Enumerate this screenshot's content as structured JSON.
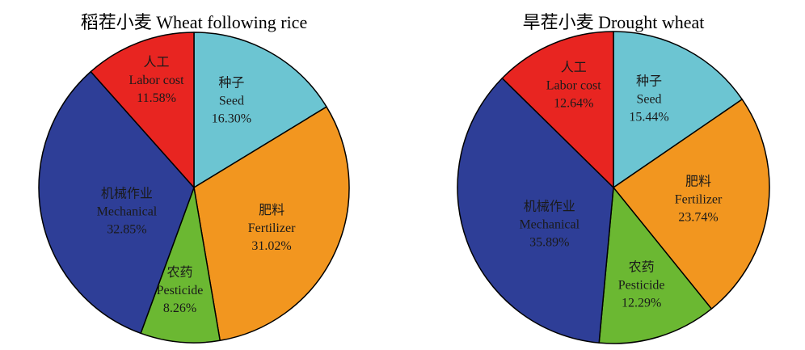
{
  "chart_data": [
    {
      "type": "pie",
      "title": "稻茬小麦 Wheat following rice",
      "slices": [
        {
          "label_cn": "种子",
          "label_en": "Seed",
          "value": 16.3,
          "percent_label": "16.30%",
          "color": "#6CC5D2"
        },
        {
          "label_cn": "肥料",
          "label_en": "Fertilizer",
          "value": 31.02,
          "percent_label": "31.02%",
          "color": "#F2961F"
        },
        {
          "label_cn": "农药",
          "label_en": "Pesticide",
          "value": 8.26,
          "percent_label": "8.26%",
          "color": "#6BB832"
        },
        {
          "label_cn": "机械作业",
          "label_en": "Mechanical",
          "value": 32.85,
          "percent_label": "32.85%",
          "color": "#2E3E97"
        },
        {
          "label_cn": "人工",
          "label_en": "Labor cost",
          "value": 11.58,
          "percent_label": "11.58%",
          "color": "#E82521"
        }
      ]
    },
    {
      "type": "pie",
      "title": "旱茬小麦 Drought wheat",
      "slices": [
        {
          "label_cn": "种子",
          "label_en": "Seed",
          "value": 15.44,
          "percent_label": "15.44%",
          "color": "#6CC5D2"
        },
        {
          "label_cn": "肥料",
          "label_en": "Fertilizer",
          "value": 23.74,
          "percent_label": "23.74%",
          "color": "#F2961F"
        },
        {
          "label_cn": "农药",
          "label_en": "Pesticide",
          "value": 12.29,
          "percent_label": "12.29%",
          "color": "#6BB832"
        },
        {
          "label_cn": "机械作业",
          "label_en": "Mechanical",
          "value": 35.89,
          "percent_label": "35.89%",
          "color": "#2E3E97"
        },
        {
          "label_cn": "人工",
          "label_en": "Labor cost",
          "value": 12.64,
          "percent_label": "12.64%",
          "color": "#E82521"
        }
      ]
    }
  ]
}
